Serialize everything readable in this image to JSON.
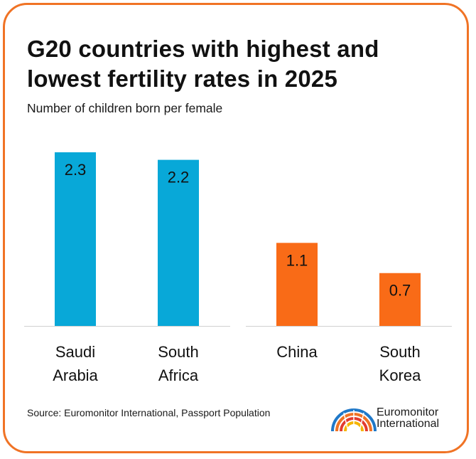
{
  "title": "G20 countries with highest and lowest fertility rates in 2025",
  "subtitle": "Number of children born per female",
  "source": "Source: Euromonitor International, Passport Population",
  "logo": {
    "line1": "Euromonitor",
    "line2": "International"
  },
  "colors": {
    "border": "#f07325",
    "high": "#08a8d8",
    "low": "#f96b17"
  },
  "chart_data": {
    "type": "bar",
    "title": "G20 countries with highest and lowest fertility rates in 2025",
    "subtitle": "Number of children born per female",
    "xlabel": "",
    "ylabel": "",
    "ylim": [
      0,
      2.3
    ],
    "grid": false,
    "groups": [
      {
        "color": "#08a8d8",
        "bars": [
          {
            "label_lines": [
              "Saudi",
              "Arabia"
            ],
            "value": 2.3,
            "value_label": "2.3"
          },
          {
            "label_lines": [
              "South",
              "Africa"
            ],
            "value": 2.2,
            "value_label": "2.2"
          }
        ]
      },
      {
        "color": "#f96b17",
        "bars": [
          {
            "label_lines": [
              "China"
            ],
            "value": 1.1,
            "value_label": "1.1"
          },
          {
            "label_lines": [
              "South",
              "Korea"
            ],
            "value": 0.7,
            "value_label": "0.7"
          }
        ]
      }
    ]
  }
}
